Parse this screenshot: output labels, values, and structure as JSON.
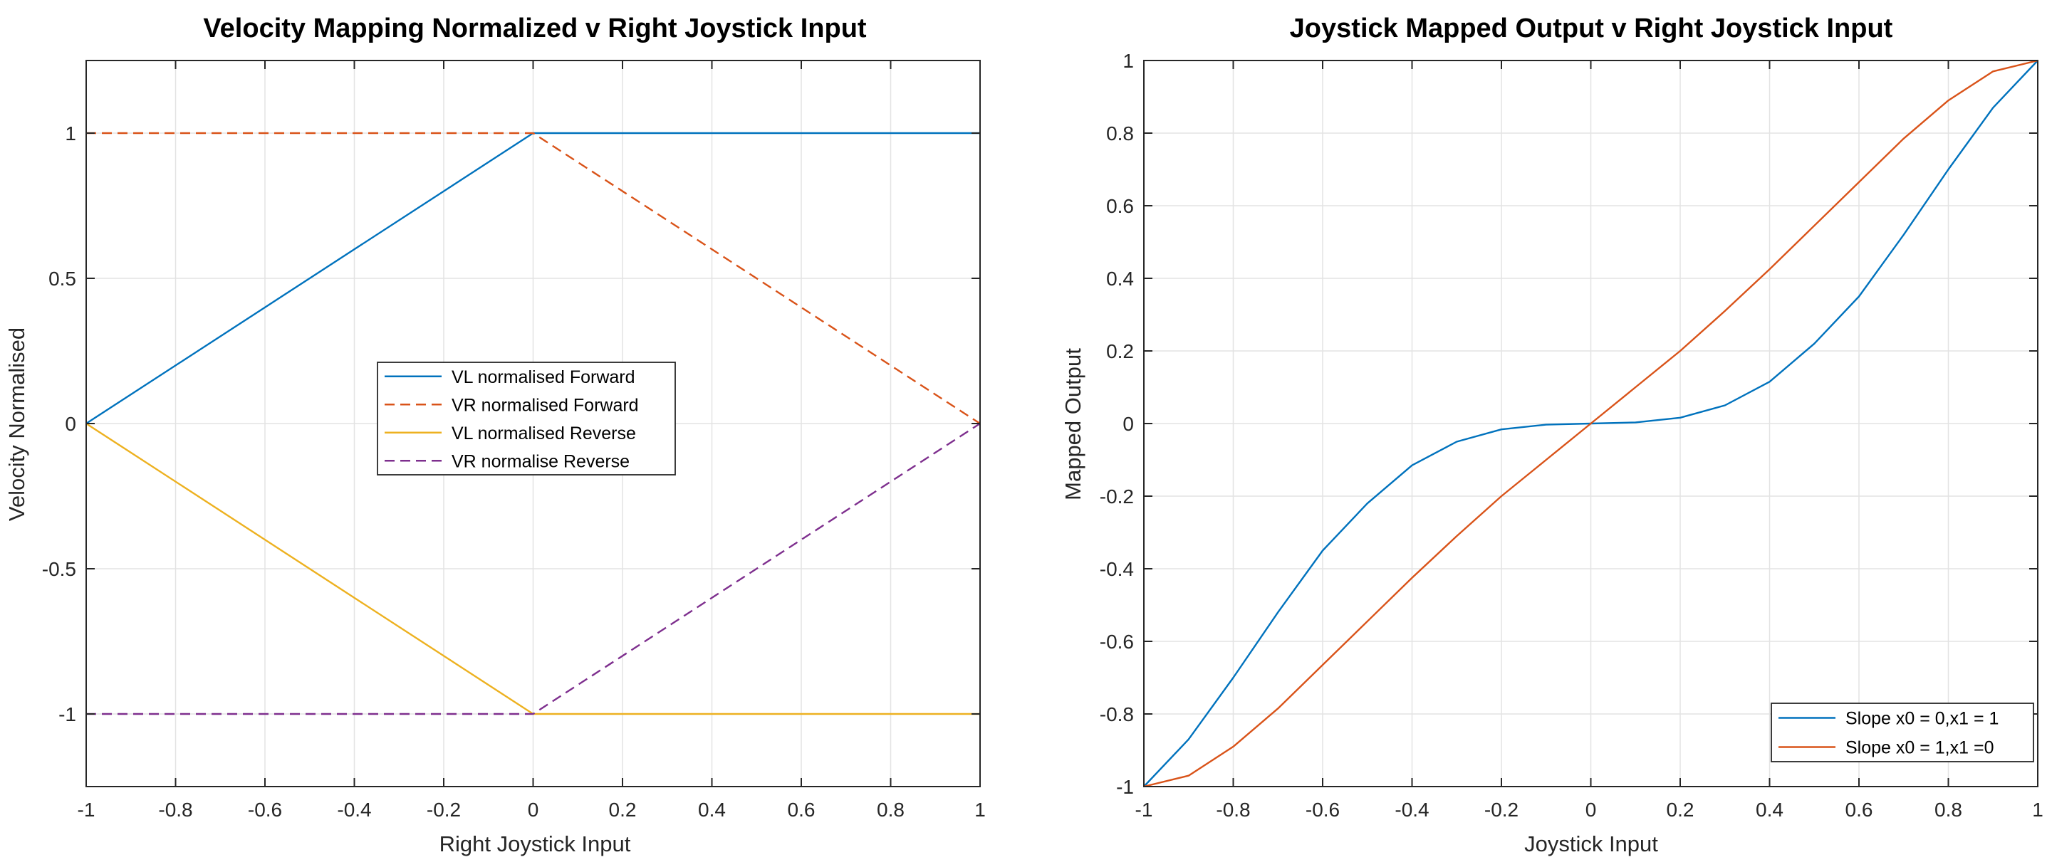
{
  "chart_data": [
    {
      "type": "line",
      "title": "Velocity Mapping Normalized v Right Joystick Input",
      "xlabel": "Right Joystick Input",
      "ylabel": "Velocity Normalised",
      "xlim": [
        -1,
        1
      ],
      "ylim": [
        -1.25,
        1.25
      ],
      "xticks": [
        "-1",
        "-0.8",
        "-0.6",
        "-0.4",
        "-0.2",
        "0",
        "0.2",
        "0.4",
        "0.6",
        "0.8",
        "1"
      ],
      "yticks": [
        "-1",
        "-0.5",
        "0",
        "0.5",
        "1"
      ],
      "grid": true,
      "legend_position": "center",
      "series": [
        {
          "name": "VL normalised Forward",
          "color": "#0072BD",
          "dash": "solid",
          "x": [
            -1,
            0,
            1
          ],
          "y": [
            0,
            1,
            1
          ]
        },
        {
          "name": "VR normalised Forward",
          "color": "#D95319",
          "dash": "dashed",
          "x": [
            -1,
            0,
            1
          ],
          "y": [
            1,
            1,
            0
          ]
        },
        {
          "name": "VL normalised Reverse",
          "color": "#EDB120",
          "dash": "solid",
          "x": [
            -1,
            0,
            1
          ],
          "y": [
            0,
            -1,
            -1
          ]
        },
        {
          "name": "VR normalise Reverse",
          "color": "#7E2F8E",
          "dash": "dashed",
          "x": [
            -1,
            0,
            1
          ],
          "y": [
            -1,
            -1,
            0
          ]
        }
      ]
    },
    {
      "type": "line",
      "title": "Joystick Mapped Output v Right Joystick Input",
      "xlabel": "Joystick Input",
      "ylabel": "Mapped Output",
      "xlim": [
        -1,
        1
      ],
      "ylim": [
        -1,
        1
      ],
      "xticks": [
        "-1",
        "-0.8",
        "-0.6",
        "-0.4",
        "-0.2",
        "0",
        "0.2",
        "0.4",
        "0.6",
        "0.8",
        "1"
      ],
      "yticks": [
        "-1",
        "-0.8",
        "-0.6",
        "-0.4",
        "-0.2",
        "0",
        "0.2",
        "0.4",
        "0.6",
        "0.8",
        "1"
      ],
      "grid": true,
      "legend_position": "bottom-right",
      "series": [
        {
          "name": "Slope x0 = 0,x1 = 1",
          "color": "#0072BD",
          "dash": "solid",
          "x": [
            -1,
            -0.9,
            -0.8,
            -0.7,
            -0.6,
            -0.5,
            -0.4,
            -0.3,
            -0.2,
            -0.1,
            0,
            0.1,
            0.2,
            0.3,
            0.4,
            0.5,
            0.6,
            0.7,
            0.8,
            0.9,
            1
          ],
          "y": [
            -1,
            -0.87,
            -0.7,
            -0.52,
            -0.35,
            -0.22,
            -0.115,
            -0.05,
            -0.016,
            -0.003,
            0,
            0.003,
            0.016,
            0.05,
            0.115,
            0.22,
            0.35,
            0.52,
            0.7,
            0.87,
            1
          ]
        },
        {
          "name": "Slope x0 = 1,x1 =0",
          "color": "#D95319",
          "dash": "solid",
          "x": [
            -1,
            -0.9,
            -0.8,
            -0.7,
            -0.6,
            -0.5,
            -0.4,
            -0.3,
            -0.2,
            -0.1,
            0,
            0.1,
            0.2,
            0.3,
            0.4,
            0.5,
            0.6,
            0.7,
            0.8,
            0.9,
            1
          ],
          "y": [
            -1,
            -0.97,
            -0.89,
            -0.785,
            -0.665,
            -0.545,
            -0.425,
            -0.31,
            -0.2,
            -0.1,
            0,
            0.1,
            0.2,
            0.31,
            0.425,
            0.545,
            0.665,
            0.785,
            0.89,
            0.97,
            1
          ]
        }
      ]
    }
  ]
}
